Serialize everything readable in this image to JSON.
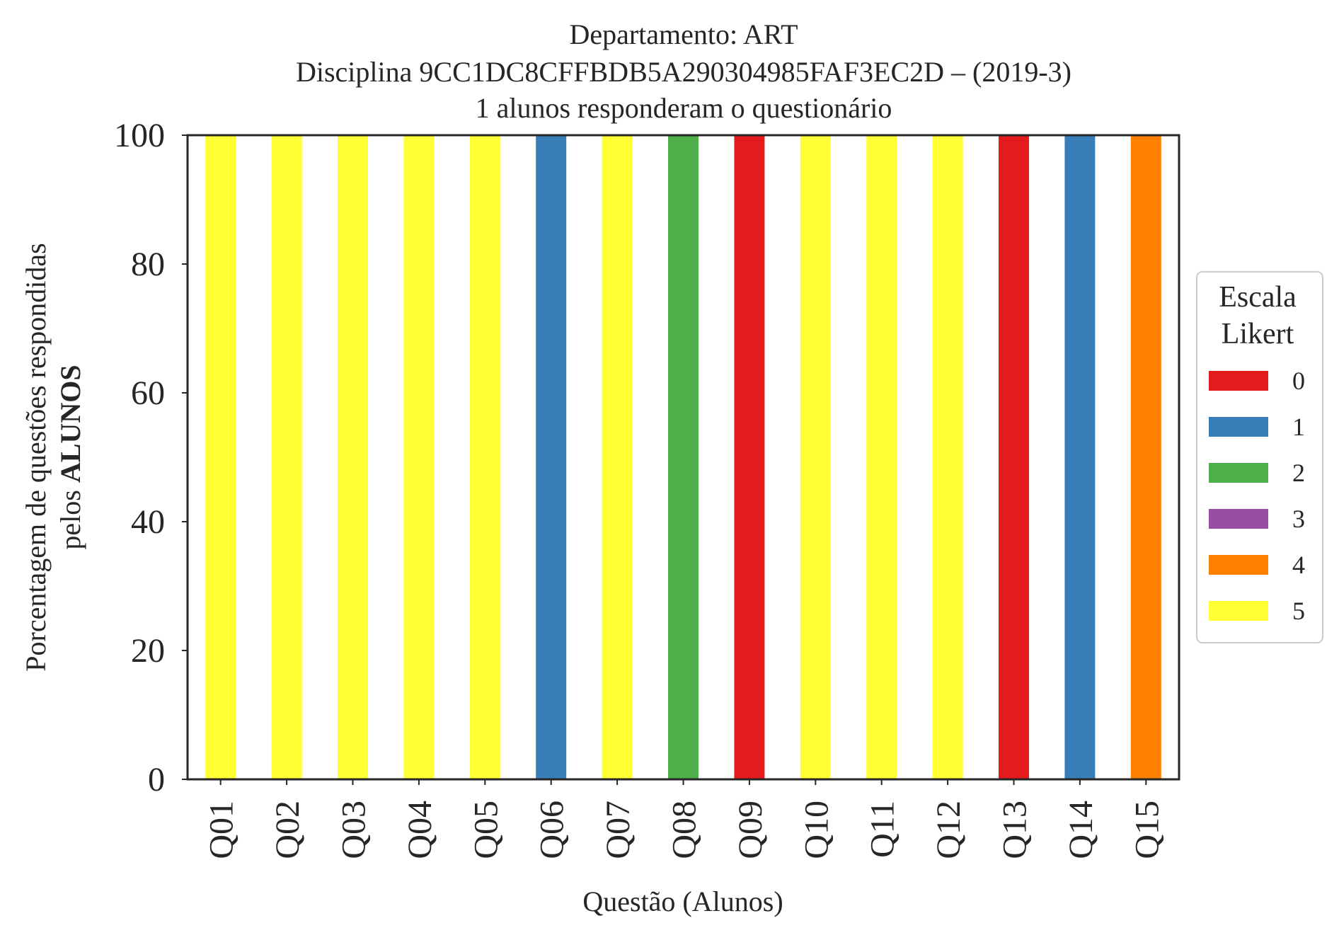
{
  "chart_data": {
    "type": "bar",
    "stacked": true,
    "title_lines": [
      "Departamento: ART",
      "Disciplina 9CC1DC8CFFBDB5A290304985FAF3EC2D – (2019-3)",
      "1 alunos responderam o questionário"
    ],
    "xlabel": "Questão (Alunos)",
    "ylabel_line1": "Porcentagem de questões respondidas",
    "ylabel_line2_prefix": "pelos ",
    "ylabel_line2_bold": "ALUNOS",
    "ylim": [
      0,
      100
    ],
    "yticks": [
      "0",
      "20",
      "40",
      "60",
      "80",
      "100"
    ],
    "grid": false,
    "categories": [
      "Q01",
      "Q02",
      "Q03",
      "Q04",
      "Q05",
      "Q06",
      "Q07",
      "Q08",
      "Q09",
      "Q10",
      "Q11",
      "Q12",
      "Q13",
      "Q14",
      "Q15"
    ],
    "series": [
      {
        "name": "0",
        "color": "#e41a1c",
        "values": [
          0,
          0,
          0,
          0,
          0,
          0,
          0,
          0,
          100,
          0,
          0,
          0,
          100,
          0,
          0
        ]
      },
      {
        "name": "1",
        "color": "#377eb8",
        "values": [
          0,
          0,
          0,
          0,
          0,
          100,
          0,
          0,
          0,
          0,
          0,
          0,
          0,
          100,
          0
        ]
      },
      {
        "name": "2",
        "color": "#4daf4a",
        "values": [
          0,
          0,
          0,
          0,
          0,
          0,
          0,
          100,
          0,
          0,
          0,
          0,
          0,
          0,
          0
        ]
      },
      {
        "name": "3",
        "color": "#984ea3",
        "values": [
          0,
          0,
          0,
          0,
          0,
          0,
          0,
          0,
          0,
          0,
          0,
          0,
          0,
          0,
          0
        ]
      },
      {
        "name": "4",
        "color": "#ff7f00",
        "values": [
          0,
          0,
          0,
          0,
          0,
          0,
          0,
          0,
          0,
          0,
          0,
          0,
          0,
          0,
          100
        ]
      },
      {
        "name": "5",
        "color": "#ffff33",
        "values": [
          100,
          100,
          100,
          100,
          100,
          0,
          100,
          0,
          0,
          100,
          100,
          100,
          0,
          0,
          0
        ]
      }
    ],
    "legend": {
      "title_lines": [
        "Escala",
        "Likert"
      ],
      "placement": "center-right outside"
    }
  }
}
